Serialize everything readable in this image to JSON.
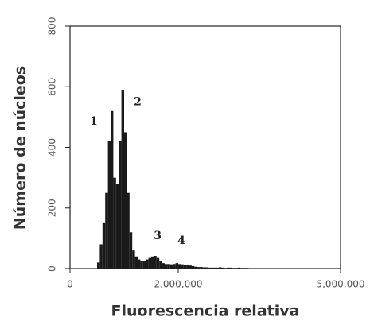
{
  "chart_data": {
    "type": "histogram",
    "xlabel": "Fluorescencia relativa",
    "ylabel": "Número de núcleos",
    "bins": [
      500000,
      550000,
      600000,
      650000,
      700000,
      750000,
      800000,
      850000,
      900000,
      950000,
      1000000,
      1050000,
      1100000,
      1150000,
      1200000,
      1250000,
      1300000,
      1350000,
      1400000,
      1450000,
      1500000,
      1550000,
      1600000,
      1650000,
      1700000,
      1750000,
      1800000,
      1850000,
      1900000,
      1950000,
      2000000,
      2050000,
      2100000,
      2150000,
      2200000,
      2250000,
      2300000,
      2350000,
      2400000,
      2450000,
      2500000,
      2550000,
      2600000,
      2650000,
      2700000,
      2750000,
      2800000,
      2850000,
      2900000,
      2950000,
      3000000,
      3050000,
      3100000,
      3150000,
      3200000,
      3250000,
      3300000,
      3350000,
      3400000,
      3450000,
      3500000
    ],
    "values": [
      20,
      80,
      150,
      250,
      420,
      520,
      300,
      280,
      420,
      590,
      450,
      250,
      120,
      60,
      40,
      30,
      25,
      25,
      30,
      35,
      40,
      42,
      35,
      25,
      18,
      15,
      15,
      14,
      15,
      18,
      15,
      14,
      12,
      12,
      10,
      8,
      6,
      5,
      5,
      4,
      4,
      3,
      3,
      3,
      3,
      4,
      3,
      2,
      3,
      3,
      2,
      2,
      3,
      2,
      2,
      2,
      1,
      1,
      1,
      1
    ],
    "color": "#1a1a1a",
    "xlim": [
      0,
      5000000
    ],
    "xticks": [
      0,
      {
        "value": 2000000,
        "label": "2,000,000"
      },
      {
        "value": 5000000,
        "label": "5,000,000"
      }
    ],
    "ylim": [
      0,
      800
    ],
    "yticks": [
      0,
      200,
      400,
      600,
      800
    ],
    "annotations": [
      {
        "label": "1",
        "x": 440000,
        "y": 485
      },
      {
        "label": "2",
        "x": 1250000,
        "y": 550
      },
      {
        "label": "3",
        "x": 1620000,
        "y": 108
      },
      {
        "label": "4",
        "x": 2060000,
        "y": 92
      }
    ]
  }
}
